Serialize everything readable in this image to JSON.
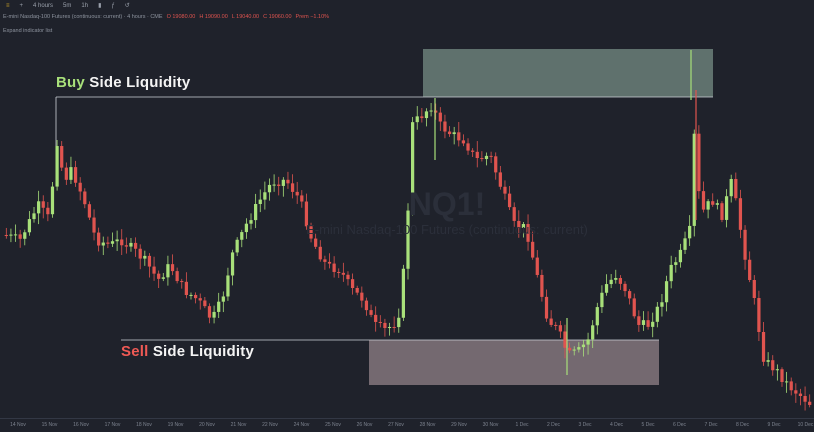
{
  "toolbar": {
    "items": [
      {
        "label": "4 hours",
        "name": "interval-4-hours-button"
      },
      {
        "label": "5m",
        "name": "interval-5m-button"
      },
      {
        "label": "1h",
        "name": "interval-1h-button"
      }
    ]
  },
  "info": {
    "symbol_line": "E-mini Nasdaq-100 Futures (continuous: current) · 4 hours · CME",
    "open": "O 19080.00",
    "high": "H 19090.00",
    "low": "L 19040.00",
    "close": "C 19060.00",
    "change": "Prem −1.10%"
  },
  "expand_indicator_label": "Expand indicator list",
  "watermark": {
    "symbol": "NQ1!",
    "description": "E-mini Nasdaq-100 Futures (continuous: current)"
  },
  "labels": {
    "buy_word": "Buy",
    "buy_rest": " Side Liquidity",
    "sell_word": "Sell",
    "sell_rest": " Side Liquidity"
  },
  "colors": {
    "background": "#1f222b",
    "bull": "#a8e07a",
    "bear": "#e0544f",
    "buy_zone": "#6b7f79",
    "sell_zone": "#8a7c82",
    "level_line": "#cfd2d8"
  },
  "x_axis_ticks": [
    "14 Nov",
    "15 Nov",
    "16 Nov",
    "17 Nov",
    "18 Nov",
    "19 Nov",
    "20 Nov",
    "21 Nov",
    "22 Nov",
    "24 Nov",
    "25 Nov",
    "26 Nov",
    "27 Nov",
    "28 Nov",
    "29 Nov",
    "30 Nov",
    "1 Dec",
    "2 Dec",
    "3 Dec",
    "4 Dec",
    "5 Dec",
    "6 Dec",
    "7 Dec",
    "8 Dec",
    "9 Dec",
    "10 Dec",
    "11 Dec",
    "12 Dec",
    "13 Dec",
    "15 Dec",
    "16 Dec",
    "17 Dec"
  ]
}
